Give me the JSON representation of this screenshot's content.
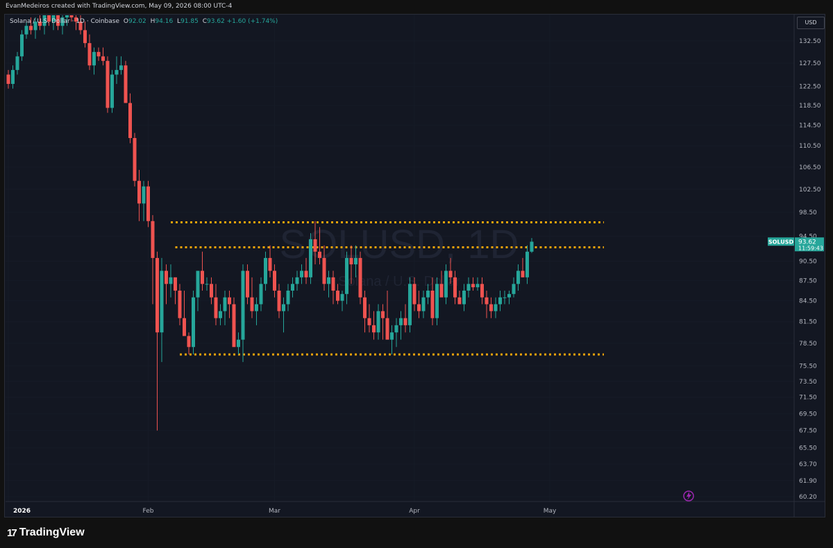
{
  "caption": "EvanMedeiros created with TradingView.com, May 09, 2026 08:00 UTC-4",
  "symbol": {
    "name": "Solana / U.S. Dollar · 1D · Coinbase",
    "open_label": "O",
    "open": "92.02",
    "high_label": "H",
    "high": "94.16",
    "low_label": "L",
    "low": "91.85",
    "close_label": "C",
    "close": "93.62",
    "change": "+1.60 (+1.74%)"
  },
  "currency": "USD",
  "watermark": {
    "ticker": "SOLUSD, 1D",
    "name": "Solana / U.S. Dollar"
  },
  "price_tag": {
    "ticker": "SOLUSD",
    "price": "93.62",
    "countdown": "11:59:43"
  },
  "footer": {
    "brand": "TradingView",
    "mark": "17"
  },
  "colors": {
    "up": "#26a69a",
    "down": "#ef5350",
    "level": "#f0a30a",
    "background": "#131722"
  },
  "icons": [
    "lightning-icon",
    "tradingview-logo-icon"
  ],
  "chart_data": {
    "type": "candlestick",
    "x_labels": [
      {
        "day": 0,
        "label": "2026"
      },
      {
        "day": 31,
        "label": "Feb"
      },
      {
        "day": 59,
        "label": "Mar"
      },
      {
        "day": 90,
        "label": "Apr"
      },
      {
        "day": 120,
        "label": "May"
      }
    ],
    "y_ticks": [
      "132.50",
      "127.50",
      "122.50",
      "118.50",
      "114.50",
      "110.50",
      "106.50",
      "102.50",
      "98.50",
      "94.50",
      "90.50",
      "87.50",
      "84.50",
      "81.50",
      "78.50",
      "75.50",
      "73.50",
      "71.50",
      "69.50",
      "67.50",
      "65.50",
      "63.70",
      "61.90",
      "60.20"
    ],
    "ylim": [
      60.2,
      132.5
    ],
    "scale": "log",
    "levels": [
      {
        "price": 96.8,
        "from_day": 36,
        "to_day": 132
      },
      {
        "price": 92.7,
        "from_day": 37,
        "to_day": 132
      },
      {
        "price": 77.0,
        "from_day": 38,
        "to_day": 132
      }
    ],
    "candles_ohlc_from_2026_01_01": [
      [
        125,
        126,
        122,
        123
      ],
      [
        123,
        127,
        122,
        126
      ],
      [
        126,
        130,
        125,
        129
      ],
      [
        129,
        135,
        128,
        134
      ],
      [
        134,
        137,
        133,
        136
      ],
      [
        136,
        138,
        134,
        135
      ],
      [
        135,
        138,
        133,
        137
      ],
      [
        137,
        139,
        135,
        136
      ],
      [
        136,
        141,
        134,
        140
      ],
      [
        140,
        142,
        136,
        137
      ],
      [
        137,
        141,
        135,
        139
      ],
      [
        139,
        141,
        135,
        136
      ],
      [
        136,
        139,
        134,
        138
      ],
      [
        138,
        141,
        136,
        140
      ],
      [
        140,
        143,
        137,
        138
      ],
      [
        138,
        140,
        135,
        137
      ],
      [
        137,
        139,
        134,
        135
      ],
      [
        135,
        137,
        131,
        132
      ],
      [
        132,
        134,
        126,
        127
      ],
      [
        127,
        131,
        125,
        130
      ],
      [
        130,
        131,
        128,
        129
      ],
      [
        129,
        131,
        127,
        128
      ],
      [
        128,
        129,
        117,
        118
      ],
      [
        118,
        126,
        117,
        125
      ],
      [
        125,
        129,
        123,
        126
      ],
      [
        126,
        129,
        125,
        127
      ],
      [
        127,
        128,
        119,
        119
      ],
      [
        119,
        121,
        111,
        112
      ],
      [
        112,
        113,
        103,
        104
      ],
      [
        104,
        106,
        97,
        100
      ],
      [
        100,
        104,
        97,
        103
      ],
      [
        103,
        104,
        96,
        97
      ],
      [
        97,
        98,
        84,
        91
      ],
      [
        91,
        92,
        67.5,
        80
      ],
      [
        80,
        91,
        76,
        89
      ],
      [
        89,
        90,
        84,
        87
      ],
      [
        87,
        90,
        85,
        88
      ],
      [
        88,
        88,
        84,
        86
      ],
      [
        86,
        87,
        81,
        82
      ],
      [
        82,
        86,
        80,
        79.5
      ],
      [
        79.5,
        80,
        77,
        78
      ],
      [
        78,
        86,
        77,
        85
      ],
      [
        85,
        88,
        83,
        89
      ],
      [
        89,
        92,
        86,
        87
      ],
      [
        87,
        88,
        86,
        87
      ],
      [
        87,
        88,
        84,
        85
      ],
      [
        85,
        87,
        81,
        82
      ],
      [
        82,
        84,
        81,
        83
      ],
      [
        83,
        86,
        81,
        85
      ],
      [
        85,
        86,
        82,
        84
      ],
      [
        84,
        85,
        80,
        78
      ],
      [
        78,
        80,
        77,
        79
      ],
      [
        79,
        90,
        76,
        89
      ],
      [
        89,
        90,
        84,
        85
      ],
      [
        85,
        88,
        82,
        83
      ],
      [
        83,
        85,
        81,
        84
      ],
      [
        84,
        88,
        83,
        87
      ],
      [
        87,
        92,
        86,
        91
      ],
      [
        91,
        93,
        88,
        89
      ],
      [
        89,
        90,
        85,
        86
      ],
      [
        86,
        87,
        82,
        83
      ],
      [
        83,
        85,
        80,
        84
      ],
      [
        84,
        87,
        83,
        86
      ],
      [
        86,
        88,
        85,
        87
      ],
      [
        87,
        89,
        86,
        88
      ],
      [
        88,
        90,
        87,
        89
      ],
      [
        89,
        91,
        87,
        88
      ],
      [
        88,
        95,
        87,
        94
      ],
      [
        94,
        97,
        90,
        92
      ],
      [
        92,
        96,
        90,
        91
      ],
      [
        91,
        93,
        86,
        87
      ],
      [
        87,
        89,
        85,
        88
      ],
      [
        88,
        89,
        84,
        86
      ],
      [
        86,
        87,
        84,
        84.5
      ],
      [
        84.5,
        86,
        83,
        85.5
      ],
      [
        85.5,
        92,
        84,
        91
      ],
      [
        91,
        93,
        87,
        90
      ],
      [
        90,
        93,
        88,
        91
      ],
      [
        91,
        92,
        84,
        85
      ],
      [
        85,
        86,
        80,
        82
      ],
      [
        82,
        84,
        80,
        81
      ],
      [
        81,
        83,
        79,
        80
      ],
      [
        80,
        84,
        79,
        83
      ],
      [
        83,
        84,
        79,
        82
      ],
      [
        82,
        86,
        80,
        79
      ],
      [
        79,
        81,
        77,
        80
      ],
      [
        80,
        82,
        78,
        81
      ],
      [
        81,
        83,
        79,
        82
      ],
      [
        82,
        84,
        80,
        81
      ],
      [
        81,
        88,
        80,
        87
      ],
      [
        87,
        88,
        83,
        84
      ],
      [
        84,
        86,
        82,
        83
      ],
      [
        83,
        86,
        82,
        85
      ],
      [
        85,
        87,
        84,
        86
      ],
      [
        86,
        88,
        81,
        82
      ],
      [
        82,
        88,
        81,
        87
      ],
      [
        87,
        89,
        86,
        85
      ],
      [
        85,
        90,
        84,
        89
      ],
      [
        89,
        91,
        87,
        88
      ],
      [
        88,
        89,
        84,
        85
      ],
      [
        85,
        86,
        84,
        84
      ],
      [
        84,
        87,
        83,
        86
      ],
      [
        86,
        88,
        85,
        87
      ],
      [
        87,
        88,
        86,
        86.5
      ],
      [
        86.5,
        88,
        86,
        87
      ],
      [
        87,
        88,
        84,
        85
      ],
      [
        85,
        86,
        82,
        84
      ],
      [
        84,
        85,
        82,
        83
      ],
      [
        83,
        85,
        82,
        84
      ],
      [
        84,
        86,
        83,
        85
      ],
      [
        85,
        86,
        84,
        85
      ],
      [
        85,
        86,
        84,
        85.5
      ],
      [
        85.5,
        88,
        85,
        87
      ],
      [
        87,
        90,
        86,
        89
      ],
      [
        89,
        91,
        88,
        88
      ],
      [
        88,
        93,
        87,
        92
      ],
      [
        92,
        94.2,
        91.8,
        93.6
      ]
    ]
  }
}
